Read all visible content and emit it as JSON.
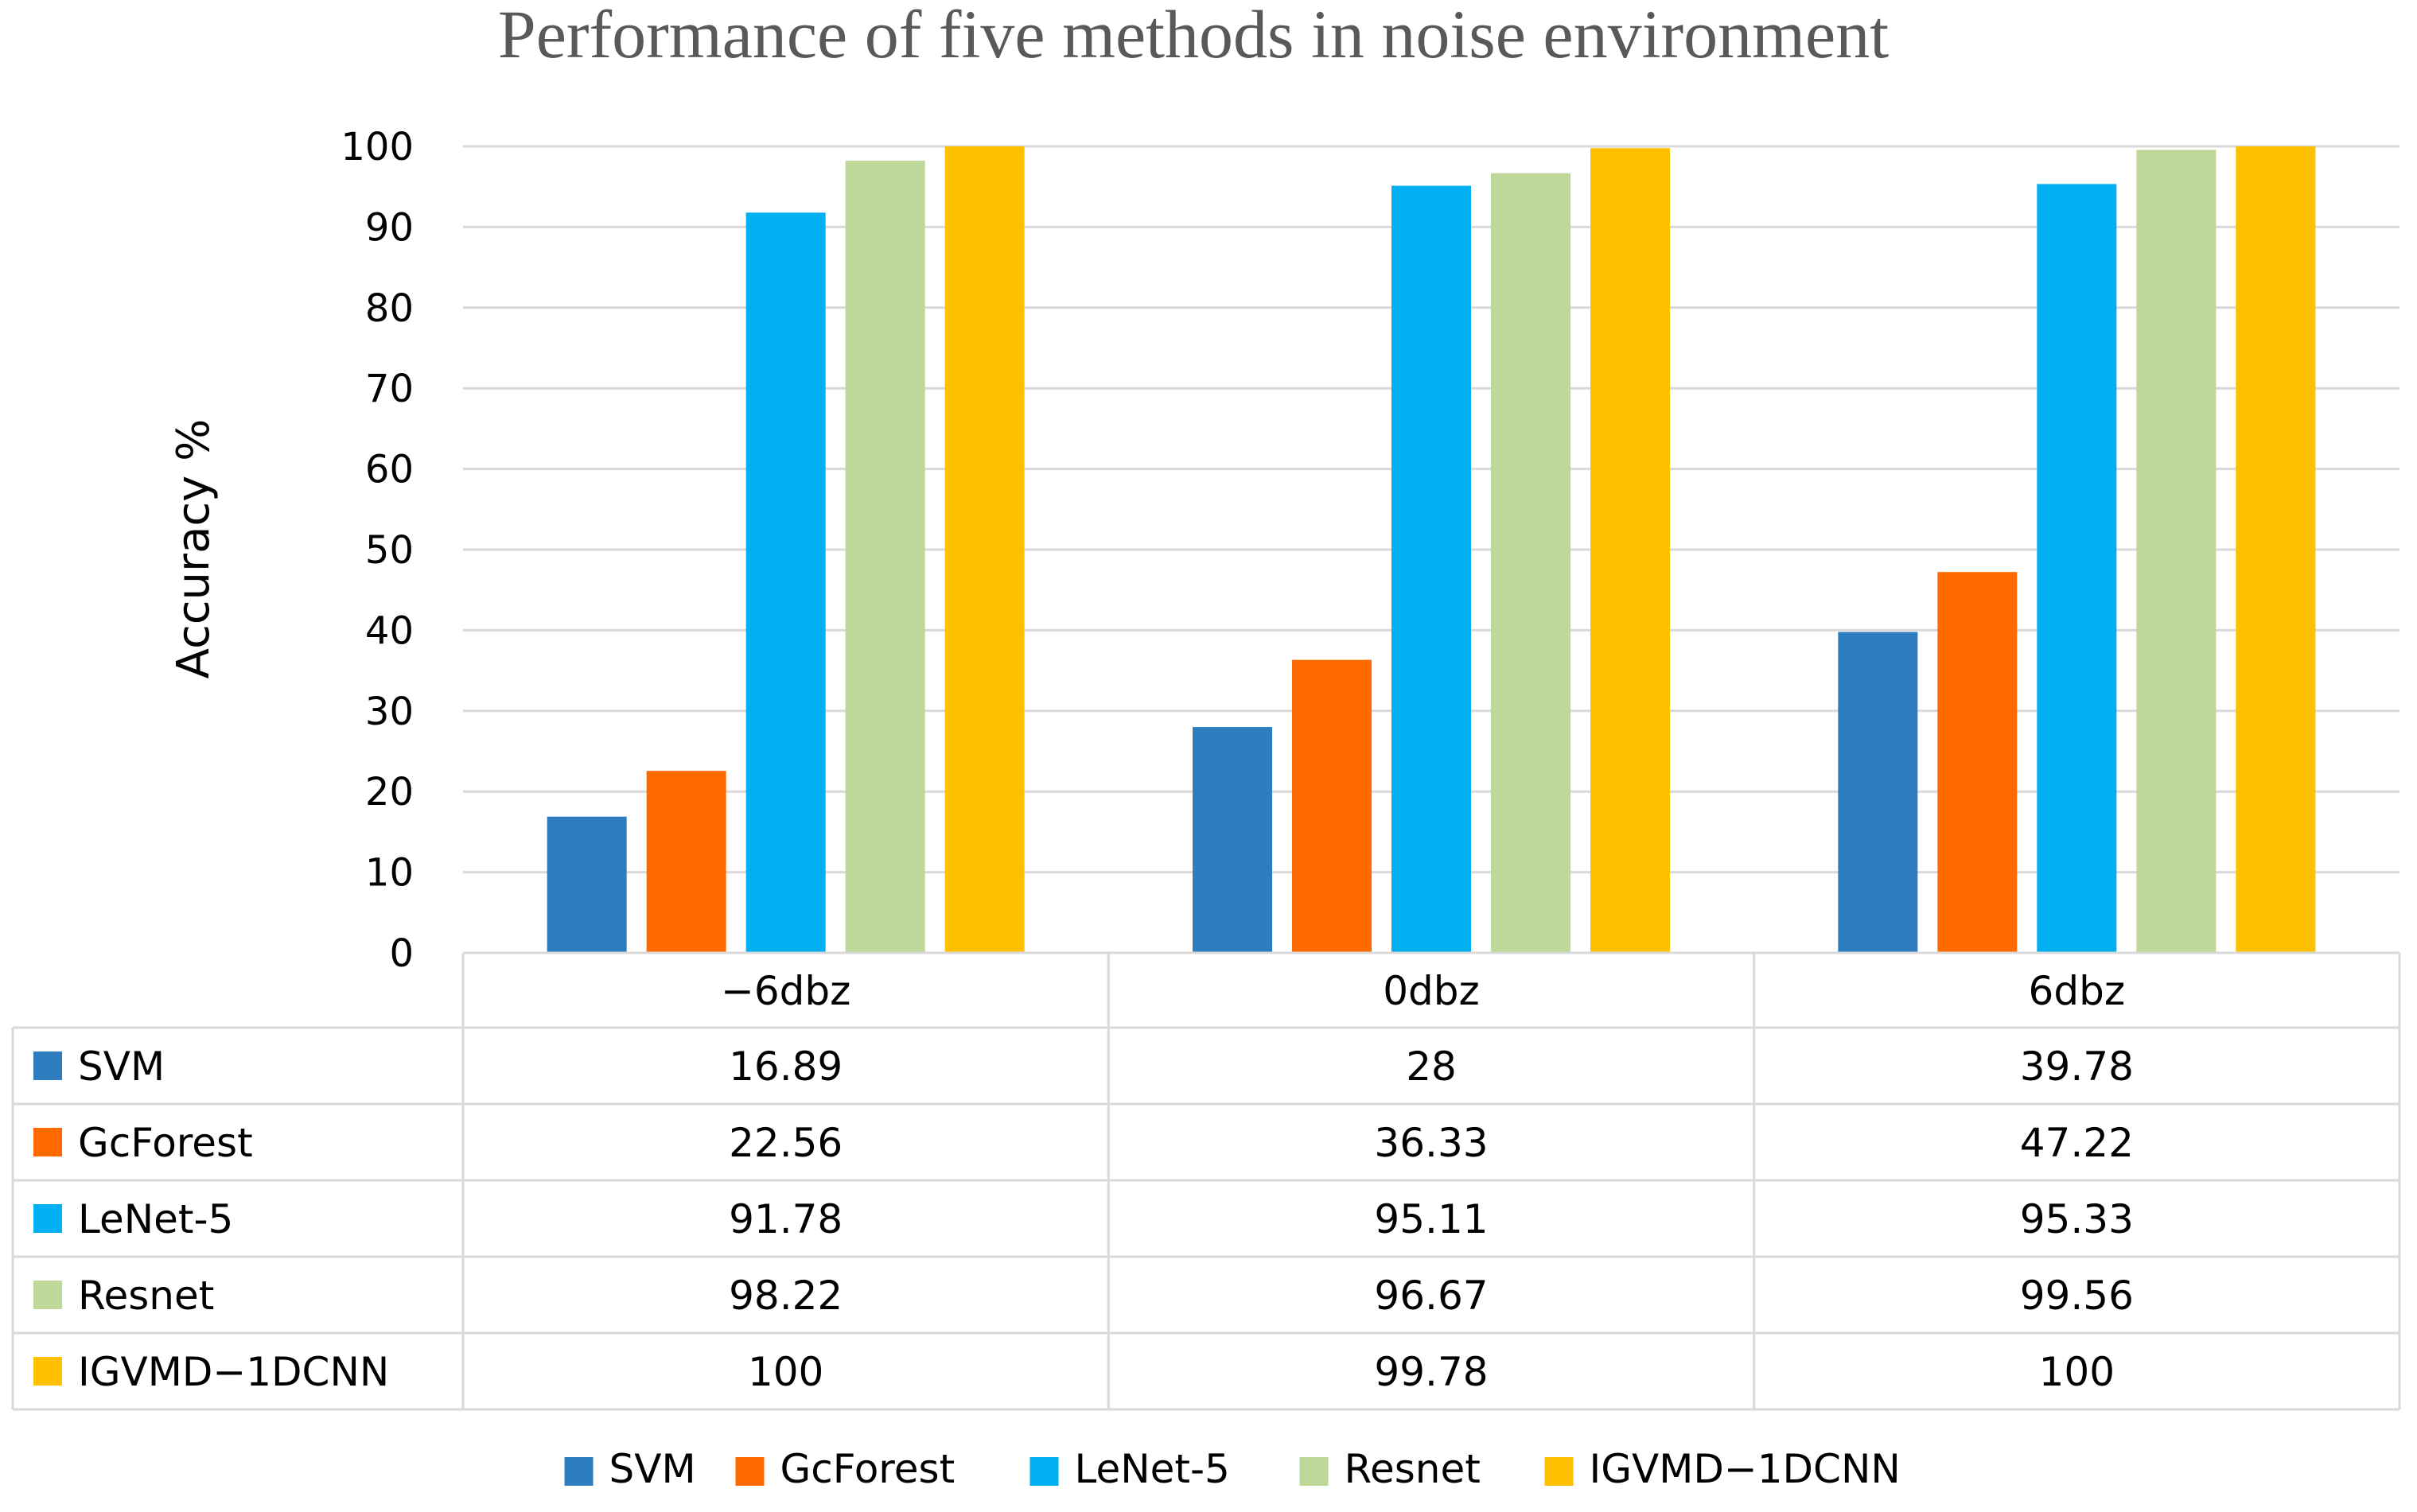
{
  "chart_data": {
    "type": "bar",
    "title": "Performance of five methods in noise environment",
    "ylabel": "Accuracy %",
    "xlabel": "",
    "ylim": [
      0,
      100
    ],
    "yticks": [
      0,
      10,
      20,
      30,
      40,
      50,
      60,
      70,
      80,
      90,
      100
    ],
    "grid": true,
    "legend_position": "bottom",
    "data_table": true,
    "categories": [
      "−6dbz",
      "0dbz",
      "6dbz"
    ],
    "series": [
      {
        "name": "SVM",
        "color": "#2E7DBE",
        "values": [
          16.89,
          28,
          39.78
        ],
        "labels": [
          "16.89",
          "28",
          "39.78"
        ]
      },
      {
        "name": "GcForest",
        "color": "#FF6A00",
        "values": [
          22.56,
          36.33,
          47.22
        ],
        "labels": [
          "22.56",
          "36.33",
          "47.22"
        ]
      },
      {
        "name": "LeNet-5",
        "color": "#00B0F0",
        "values": [
          91.78,
          95.11,
          95.33
        ],
        "labels": [
          "91.78",
          "95.11",
          "95.33"
        ]
      },
      {
        "name": "Resnet",
        "color": "#BDD898",
        "values": [
          98.22,
          96.67,
          99.56
        ],
        "labels": [
          "98.22",
          "96.67",
          "99.56"
        ]
      },
      {
        "name": "IGVMD−1DCNN",
        "color": "#FFC000",
        "values": [
          100,
          99.78,
          100
        ],
        "labels": [
          "100",
          "99.78",
          "100"
        ]
      }
    ]
  }
}
